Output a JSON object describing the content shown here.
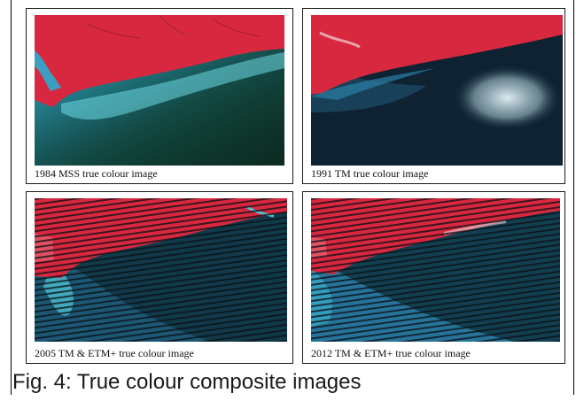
{
  "panels": [
    {
      "caption": "1984  MSS true colour image"
    },
    {
      "caption": "1991  TM true colour image"
    },
    {
      "caption": "2005  TM & ETM+ true colour image"
    },
    {
      "caption": "2012  TM & ETM+ true colour image"
    }
  ],
  "figure_caption": "Fig. 4: True colour composite images",
  "colors": {
    "land": "#d8283f",
    "land_light": "#e45a6c",
    "turbid_water": "#4ec4d6",
    "mid_water": "#2b7fa7",
    "deep_water": "#0f3a45",
    "dark_water": "#0c1f2e",
    "stripe": "#0a0f14",
    "cloud": "#e8f4f8"
  }
}
